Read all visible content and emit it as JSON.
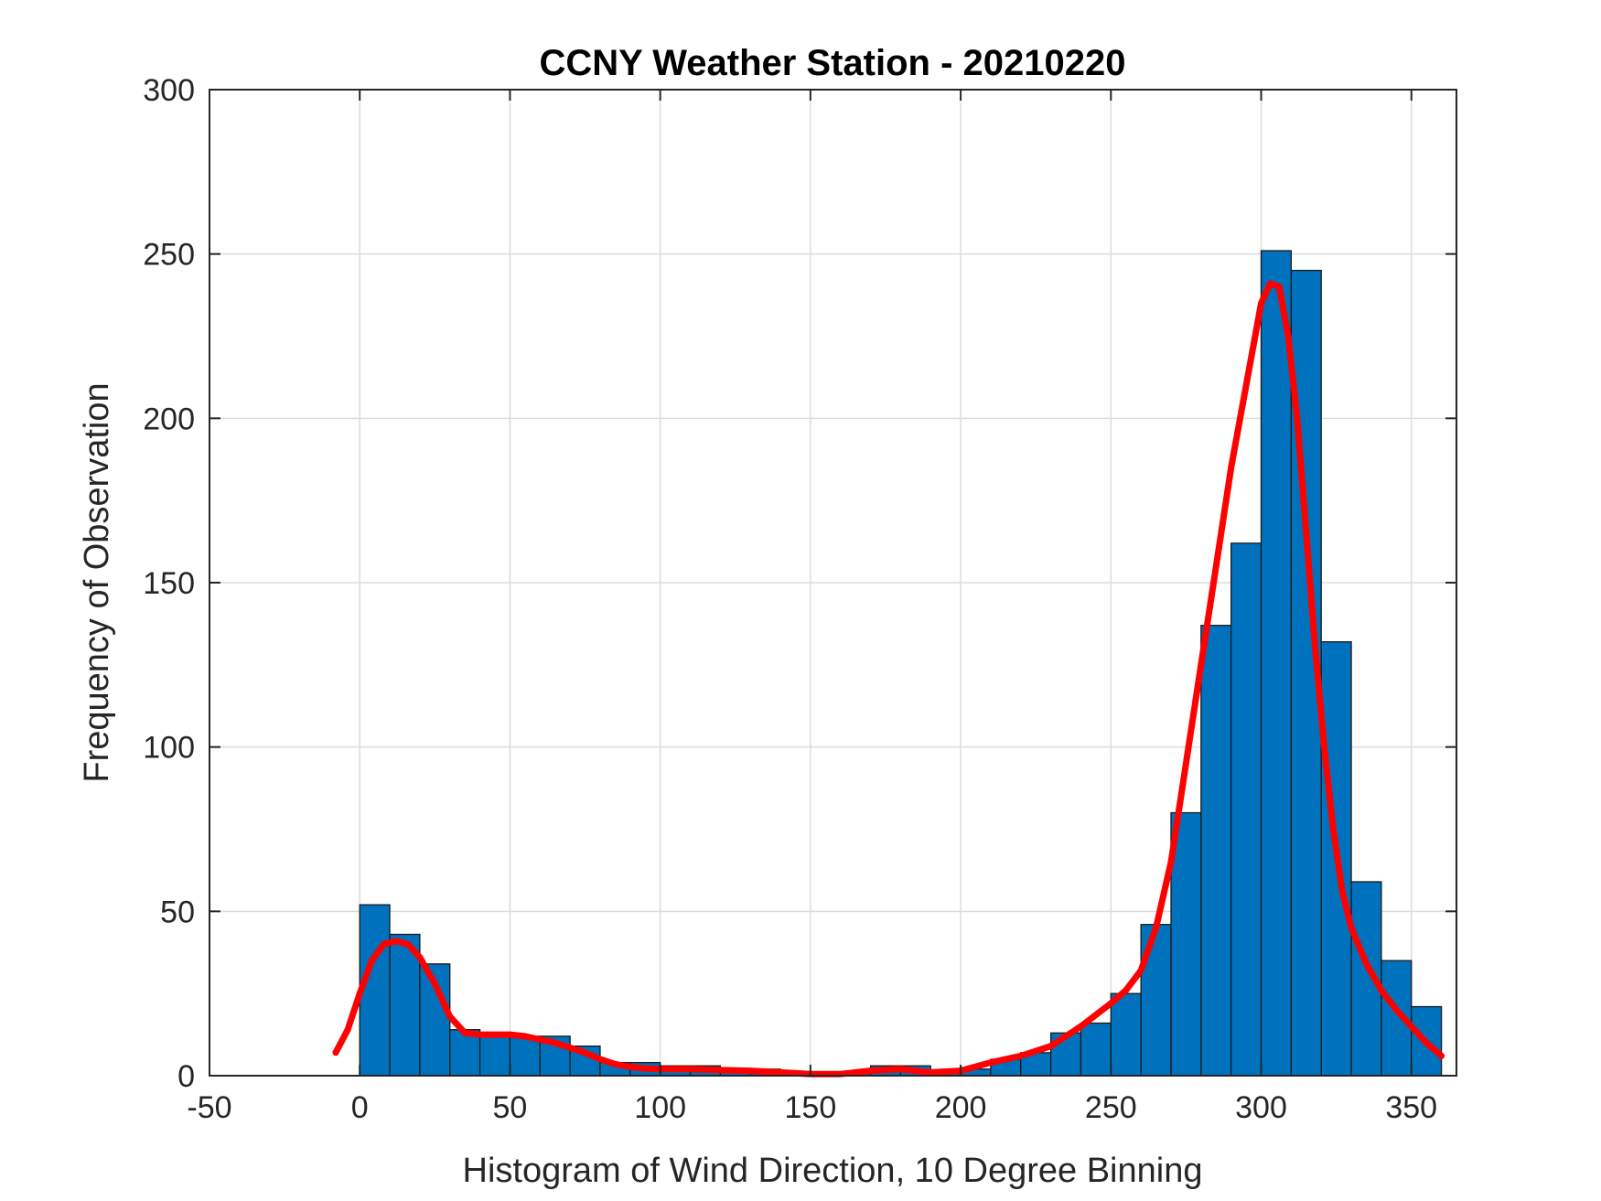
{
  "chart_data": {
    "type": "bar",
    "title": "CCNY Weather Station - 20210220",
    "xlabel": "Histogram of Wind Direction, 10 Degree Binning",
    "ylabel": "Frequency of Observation",
    "xlim": [
      -50,
      365
    ],
    "ylim": [
      0,
      300
    ],
    "xticks": [
      -50,
      0,
      50,
      100,
      150,
      200,
      250,
      300,
      350
    ],
    "yticks": [
      0,
      50,
      100,
      150,
      200,
      250,
      300
    ],
    "grid": true,
    "bin_width": 10,
    "bins": [
      0,
      10,
      20,
      30,
      40,
      50,
      60,
      70,
      80,
      90,
      100,
      110,
      120,
      130,
      140,
      150,
      160,
      170,
      180,
      190,
      200,
      210,
      220,
      230,
      240,
      250,
      260,
      270,
      280,
      290,
      300,
      310,
      320,
      330,
      340,
      350
    ],
    "values": [
      52,
      43,
      34,
      14,
      13,
      12,
      12,
      9,
      4,
      4,
      3,
      3,
      2,
      2,
      1,
      1,
      1,
      3,
      3,
      1,
      2,
      5,
      7,
      13,
      16,
      25,
      46,
      80,
      137,
      162,
      251,
      245,
      132,
      59,
      35,
      21
    ],
    "bar_color": "#0072BD",
    "fit_line": {
      "color": "#FF0000",
      "x": [
        -8,
        -4,
        0,
        4,
        8,
        12,
        16,
        20,
        25,
        30,
        35,
        40,
        45,
        50,
        55,
        60,
        65,
        70,
        75,
        80,
        85,
        90,
        95,
        100,
        110,
        120,
        130,
        140,
        150,
        160,
        170,
        180,
        190,
        200,
        210,
        220,
        230,
        240,
        250,
        255,
        260,
        265,
        270,
        275,
        280,
        285,
        290,
        295,
        300,
        303,
        306,
        309,
        312,
        315,
        318,
        321,
        324,
        327,
        330,
        335,
        340,
        345,
        350,
        355,
        360
      ],
      "y": [
        7,
        14,
        25,
        35,
        40,
        41,
        40,
        36,
        28,
        18,
        13,
        12.5,
        12.5,
        12.5,
        12,
        11,
        10,
        8.5,
        7,
        5,
        3.5,
        2.7,
        2.2,
        2,
        2,
        1.7,
        1.5,
        1,
        0.5,
        0.5,
        1.5,
        2,
        1,
        1.5,
        4,
        6,
        9,
        15,
        22,
        26,
        32,
        45,
        65,
        95,
        125,
        155,
        185,
        210,
        235,
        241,
        240,
        225,
        200,
        165,
        130,
        100,
        75,
        56,
        45,
        34,
        26,
        20,
        15,
        10,
        6
      ]
    }
  }
}
